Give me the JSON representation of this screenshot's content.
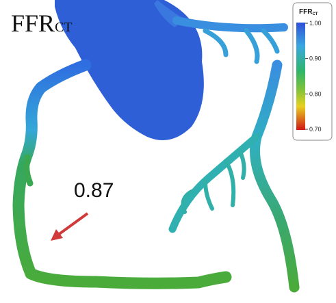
{
  "title": {
    "main": "FFR",
    "sub": "CT"
  },
  "annotation": {
    "label": "0.87"
  },
  "colorbar": {
    "title": {
      "main": "FFR",
      "sub": "CT"
    },
    "lim": [
      0.7,
      1.0
    ],
    "ticks": [
      {
        "value": 1.0,
        "label": "1.00"
      },
      {
        "value": 0.9,
        "label": "0.90"
      },
      {
        "value": 0.8,
        "label": "0.80"
      },
      {
        "value": 0.7,
        "label": "0.70"
      }
    ]
  }
}
